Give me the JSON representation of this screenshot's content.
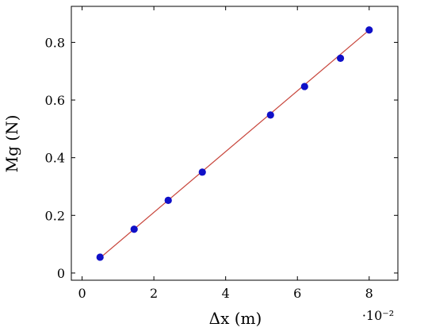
{
  "chart_data": {
    "type": "scatter",
    "xlabel": "Δx (m)",
    "ylabel": "Mg (N)",
    "x_scale_label": "·10⁻²",
    "xlim": [
      -0.3,
      8.8
    ],
    "ylim": [
      -0.025,
      0.925
    ],
    "xticks": [
      0,
      2,
      4,
      6,
      8
    ],
    "yticks": [
      0,
      0.2,
      0.4,
      0.6,
      0.8
    ],
    "grid": false,
    "series": [
      {
        "type": "scatter",
        "color": "#1010c8",
        "x": [
          0.5,
          1.45,
          2.4,
          3.35,
          5.25,
          6.2,
          7.2,
          8.0
        ],
        "y": [
          0.055,
          0.152,
          0.252,
          0.35,
          0.548,
          0.647,
          0.745,
          0.843
        ]
      },
      {
        "type": "line",
        "color": "#c8463c",
        "x": [
          0.45,
          8.05
        ],
        "y": [
          0.047,
          0.848
        ]
      }
    ]
  }
}
